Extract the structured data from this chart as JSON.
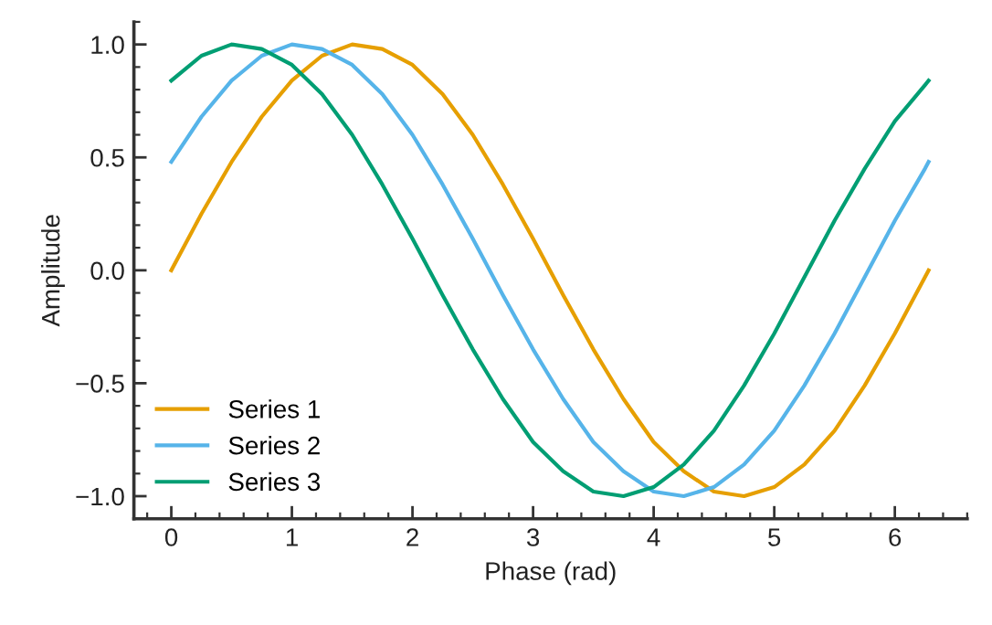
{
  "chart_data": {
    "type": "line",
    "xlabel": "Phase (rad)",
    "ylabel": "Amplitude",
    "x": [
      0,
      0.25,
      0.5,
      0.75,
      1,
      1.25,
      1.5,
      1.75,
      2,
      2.25,
      2.5,
      2.75,
      3,
      3.25,
      3.5,
      3.75,
      4,
      4.25,
      4.5,
      4.75,
      5,
      5.25,
      5.5,
      5.75,
      6,
      6.25,
      6.28
    ],
    "series": [
      {
        "name": "Series 1",
        "color": "#e69f00",
        "values": [
          0,
          0.25,
          0.48,
          0.68,
          0.84,
          0.95,
          1.0,
          0.98,
          0.91,
          0.78,
          0.6,
          0.38,
          0.14,
          -0.11,
          -0.35,
          -0.57,
          -0.76,
          -0.89,
          -0.98,
          -1.0,
          -0.96,
          -0.86,
          -0.71,
          -0.51,
          -0.28,
          -0.03,
          0.0
        ]
      },
      {
        "name": "Series 2",
        "color": "#56b4e9",
        "values": [
          0.48,
          0.68,
          0.84,
          0.95,
          1.0,
          0.98,
          0.91,
          0.78,
          0.6,
          0.38,
          0.14,
          -0.11,
          -0.35,
          -0.57,
          -0.76,
          -0.89,
          -0.98,
          -1.0,
          -0.96,
          -0.86,
          -0.71,
          -0.51,
          -0.28,
          -0.03,
          0.22,
          0.45,
          0.48
        ]
      },
      {
        "name": "Series 3",
        "color": "#009e73",
        "values": [
          0.84,
          0.95,
          1.0,
          0.98,
          0.91,
          0.78,
          0.6,
          0.38,
          0.14,
          -0.11,
          -0.35,
          -0.57,
          -0.76,
          -0.89,
          -0.98,
          -1.0,
          -0.96,
          -0.86,
          -0.71,
          -0.51,
          -0.28,
          -0.03,
          0.22,
          0.45,
          0.66,
          0.82,
          0.84
        ]
      }
    ],
    "xlim": [
      -0.31,
      6.6
    ],
    "ylim": [
      -1.1,
      1.1
    ],
    "xticks": [
      0,
      1,
      2,
      3,
      4,
      5,
      6
    ],
    "yticks": [
      {
        "value": -1.0,
        "label": "−1.0"
      },
      {
        "value": -0.5,
        "label": "−0.5"
      },
      {
        "value": 0.0,
        "label": "0.0"
      },
      {
        "value": 0.5,
        "label": "0.5"
      },
      {
        "value": 1.0,
        "label": "1.0"
      }
    ],
    "grid": false,
    "legend": "bottom left",
    "marker": "none",
    "line_style": "solid"
  }
}
